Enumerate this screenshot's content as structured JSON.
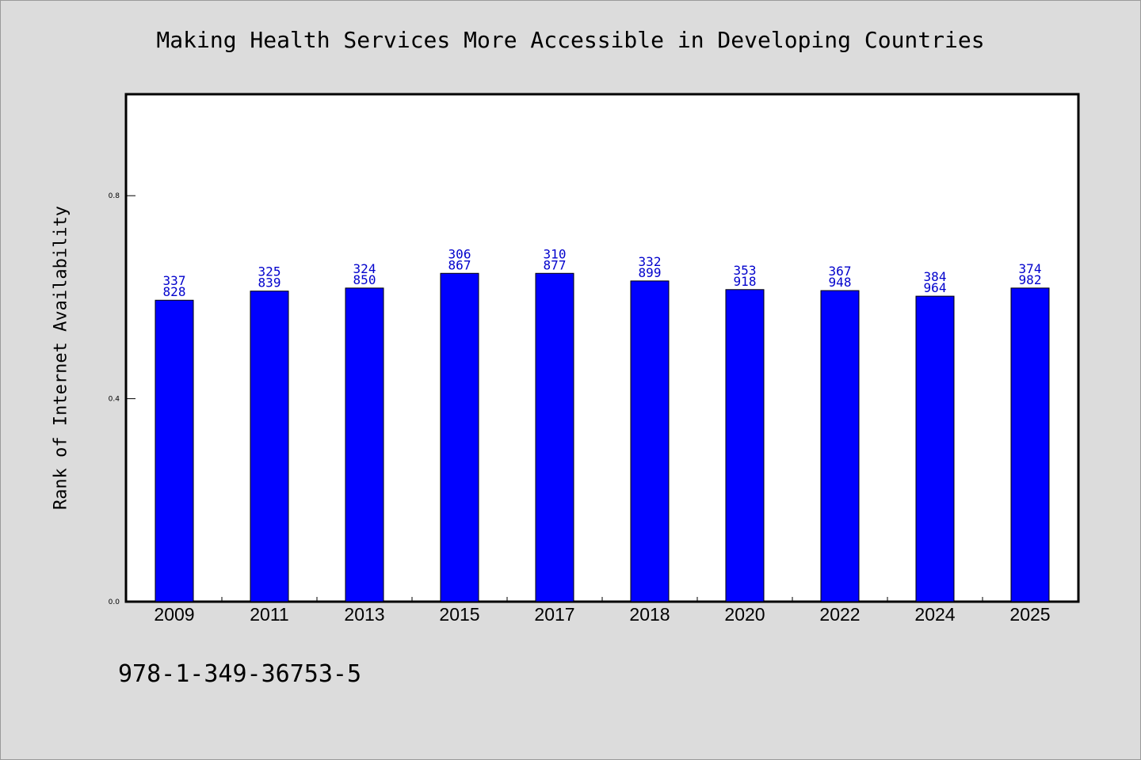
{
  "chart_data": {
    "type": "bar",
    "title": "Making Health Services More Accessible in Developing Countries",
    "xlabel": "",
    "ylabel": "Rank of Internet Availability",
    "ylim": [
      0.0,
      1.0
    ],
    "yticks": [
      0.0,
      0.4,
      0.8
    ],
    "ytick_labels": [
      "0.0",
      "0.4",
      "0.8"
    ],
    "grid": false,
    "categories": [
      "2009",
      "2011",
      "2013",
      "2015",
      "2017",
      "2018",
      "2020",
      "2022",
      "2024",
      "2025"
    ],
    "values": [
      0.594,
      0.612,
      0.618,
      0.647,
      0.647,
      0.632,
      0.615,
      0.613,
      0.602,
      0.618
    ],
    "bar_labels_top": [
      "337",
      "325",
      "324",
      "306",
      "310",
      "332",
      "353",
      "367",
      "384",
      "374"
    ],
    "bar_labels_bottom": [
      "828",
      "839",
      "850",
      "867",
      "877",
      "899",
      "918",
      "948",
      "964",
      "982"
    ],
    "bar_color": "#0000ff",
    "label_color": "#0000cc"
  },
  "footer": {
    "code": "978-1-349-36753-5"
  }
}
